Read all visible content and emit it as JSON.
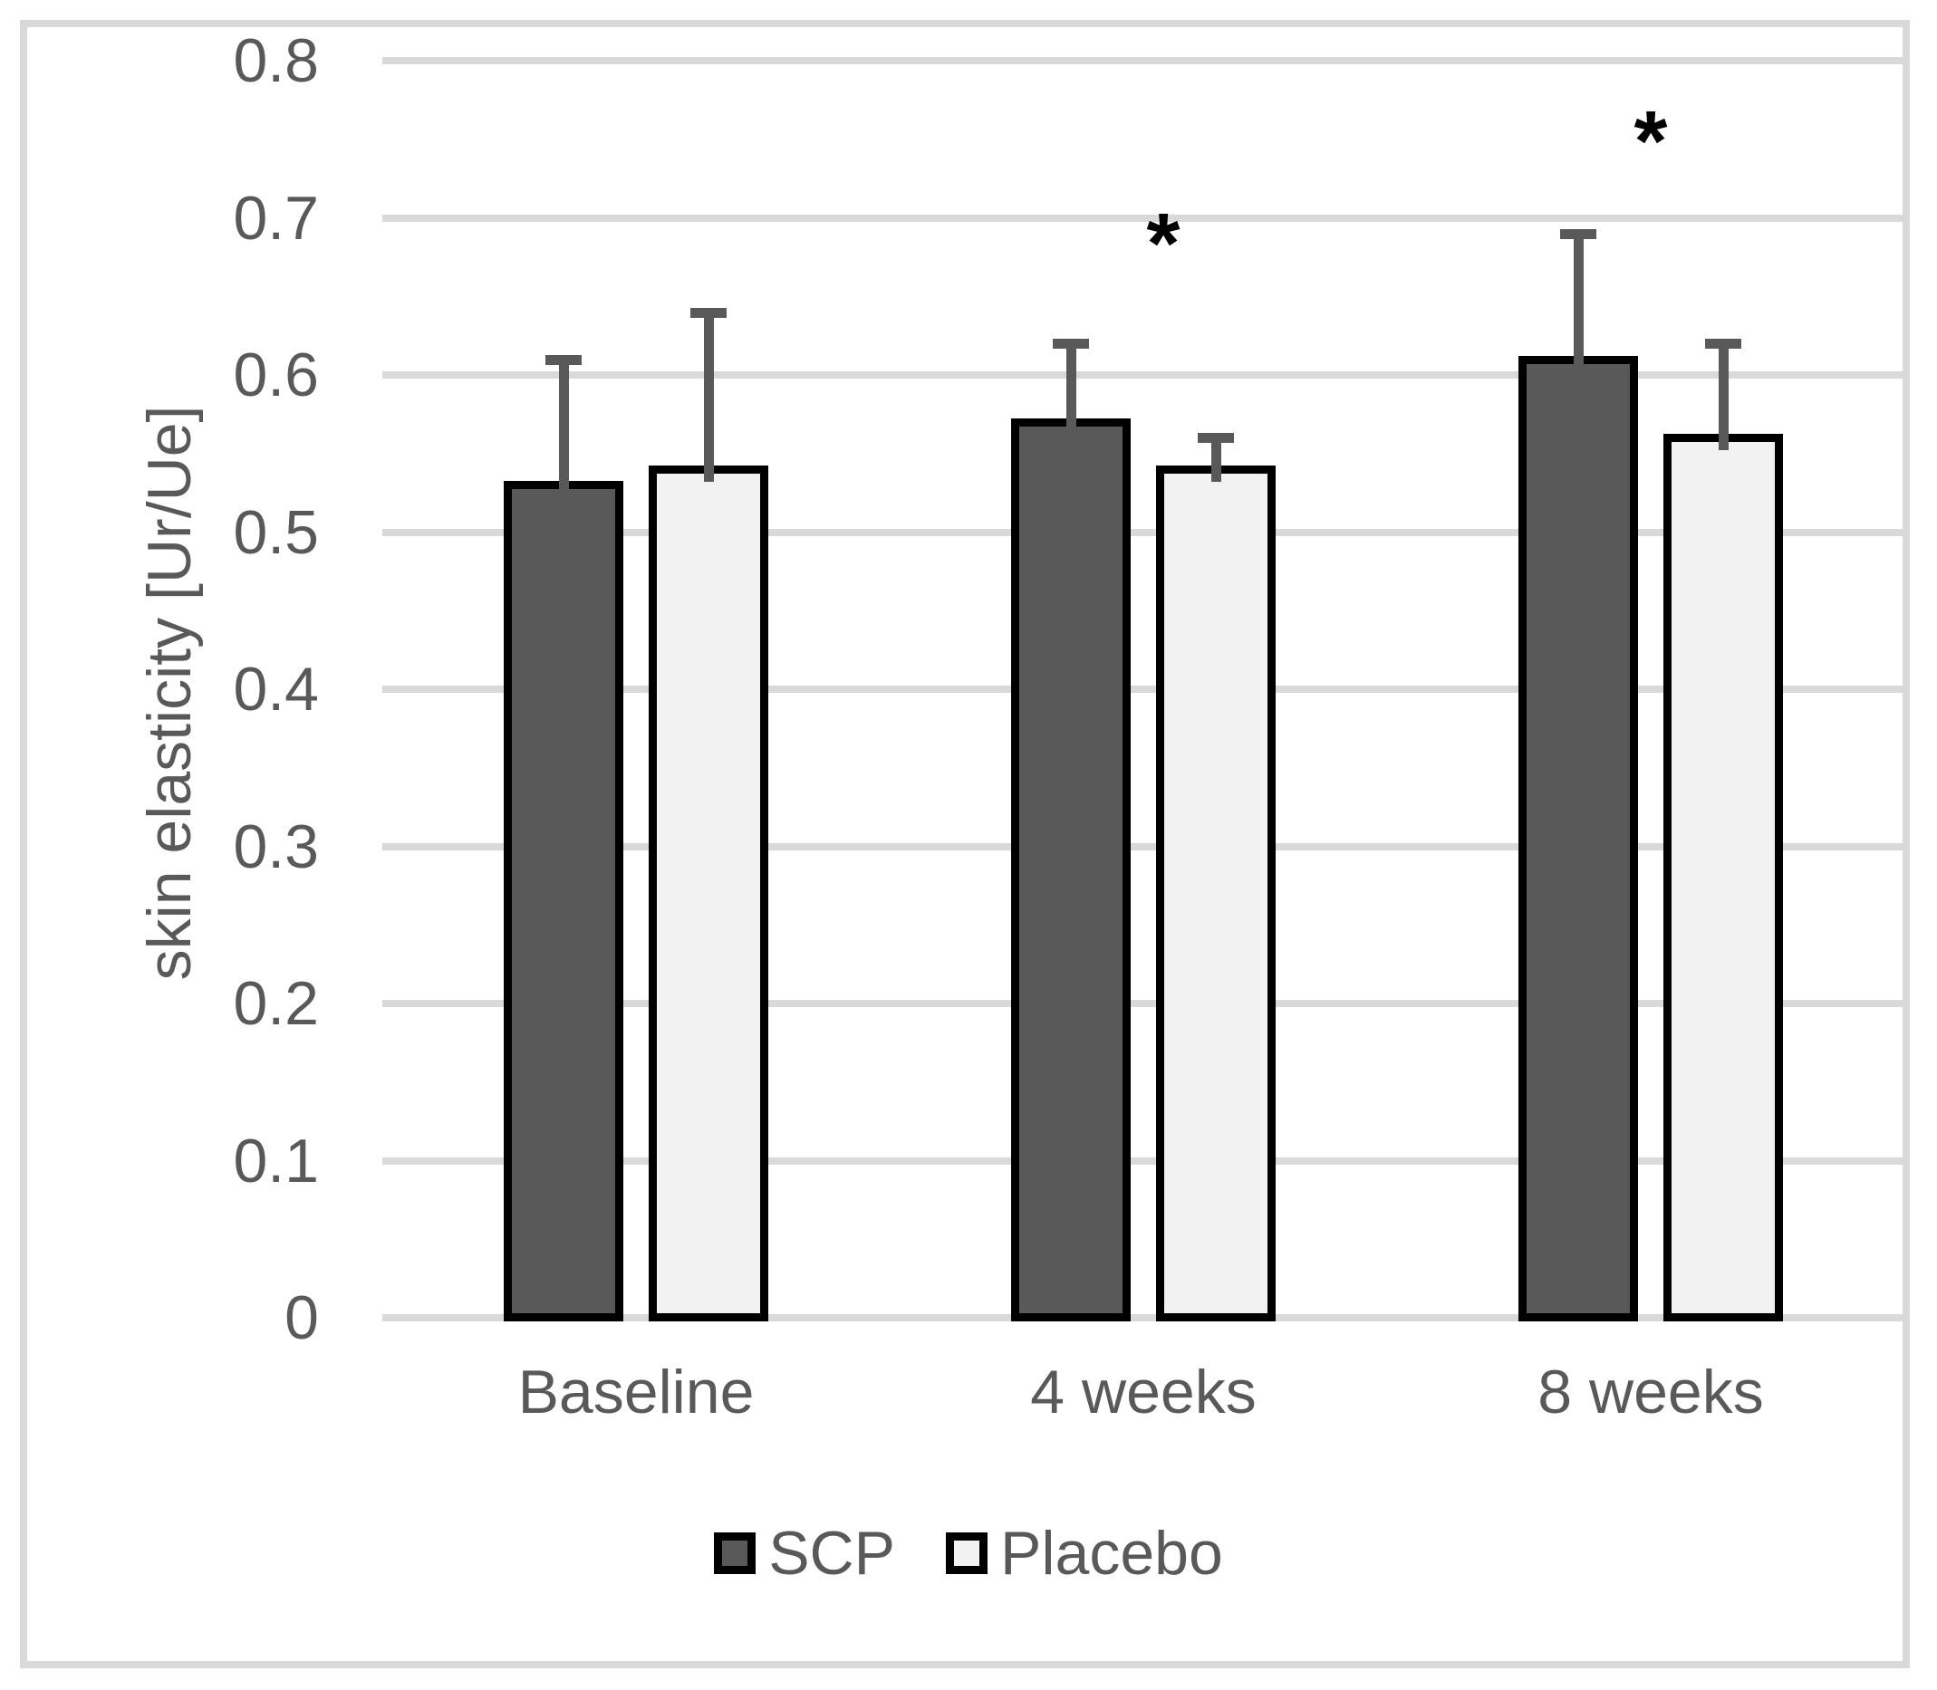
{
  "chart_data": {
    "type": "bar",
    "title": "",
    "xlabel": "",
    "ylabel": "skin elasticity [Ur/Ue]",
    "categories": [
      "Baseline",
      "4 weeks",
      "8 weeks"
    ],
    "series": [
      {
        "name": "SCP",
        "color": "#595959",
        "values": [
          0.53,
          0.57,
          0.61
        ],
        "error_plus": [
          0.08,
          0.05,
          0.08
        ]
      },
      {
        "name": "Placebo",
        "color": "#f2f2f2",
        "values": [
          0.54,
          0.54,
          0.56
        ],
        "error_plus": [
          0.1,
          0.02,
          0.06
        ]
      }
    ],
    "ylim": [
      0,
      0.8
    ],
    "yticks": [
      {
        "value": 0.8,
        "label": "0.8"
      },
      {
        "value": 0.7,
        "label": "0.7"
      },
      {
        "value": 0.6,
        "label": "0.6"
      },
      {
        "value": 0.5,
        "label": "0.5"
      },
      {
        "value": 0.4,
        "label": "0.4"
      },
      {
        "value": 0.3,
        "label": "0.3"
      },
      {
        "value": 0.2,
        "label": "0.2"
      },
      {
        "value": 0.1,
        "label": "0.1"
      },
      {
        "value": 0,
        "label": "0"
      }
    ],
    "grid": true,
    "legend_position": "bottom-center",
    "annotations": [
      {
        "text": "*",
        "category_index": 1,
        "y": 0.695,
        "dx": 22
      },
      {
        "text": "*",
        "category_index": 2,
        "y": 0.76,
        "dx": 0
      }
    ],
    "colors": {
      "gridline": "#d9d9d9",
      "frame_border": "#d9d9d9",
      "axis_text": "#595959",
      "bar_border": "#000000",
      "error_bar": "#595959",
      "annotation": "#000000",
      "background": "#ffffff"
    }
  }
}
